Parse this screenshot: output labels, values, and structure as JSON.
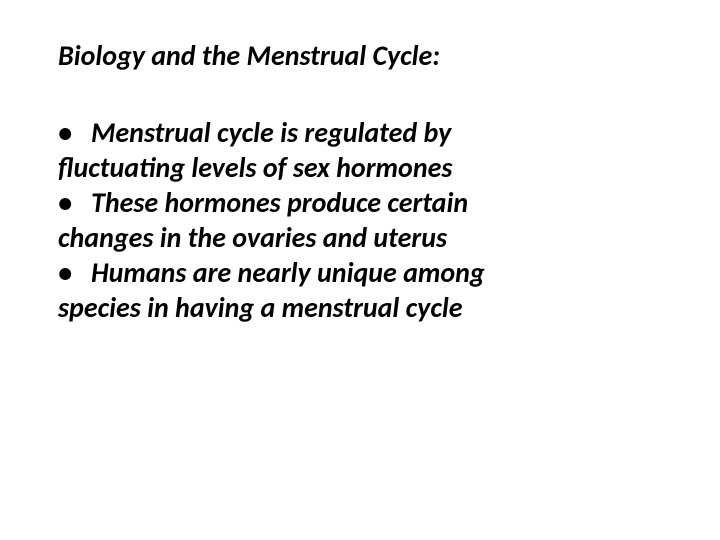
{
  "slide": {
    "title": "Biology and the Menstrual Cycle:",
    "bullets": [
      {
        "mark": "•",
        "line1": "Menstrual cycle is regulated by",
        "line2": "fluctuating levels of sex hormones"
      },
      {
        "mark": "•",
        "line1": "These hormones produce certain",
        "line2": "changes in the ovaries and uterus"
      },
      {
        "mark": "•",
        "line1": "Humans are nearly unique among",
        "line2": "species in having a menstrual cycle"
      }
    ],
    "colors": {
      "background": "#ffffff",
      "text": "#000000"
    },
    "typography": {
      "font_family": "Calibri",
      "title_fontsize_pt": 21,
      "body_fontsize_pt": 21,
      "font_weight": "bold",
      "font_style": "italic"
    }
  }
}
